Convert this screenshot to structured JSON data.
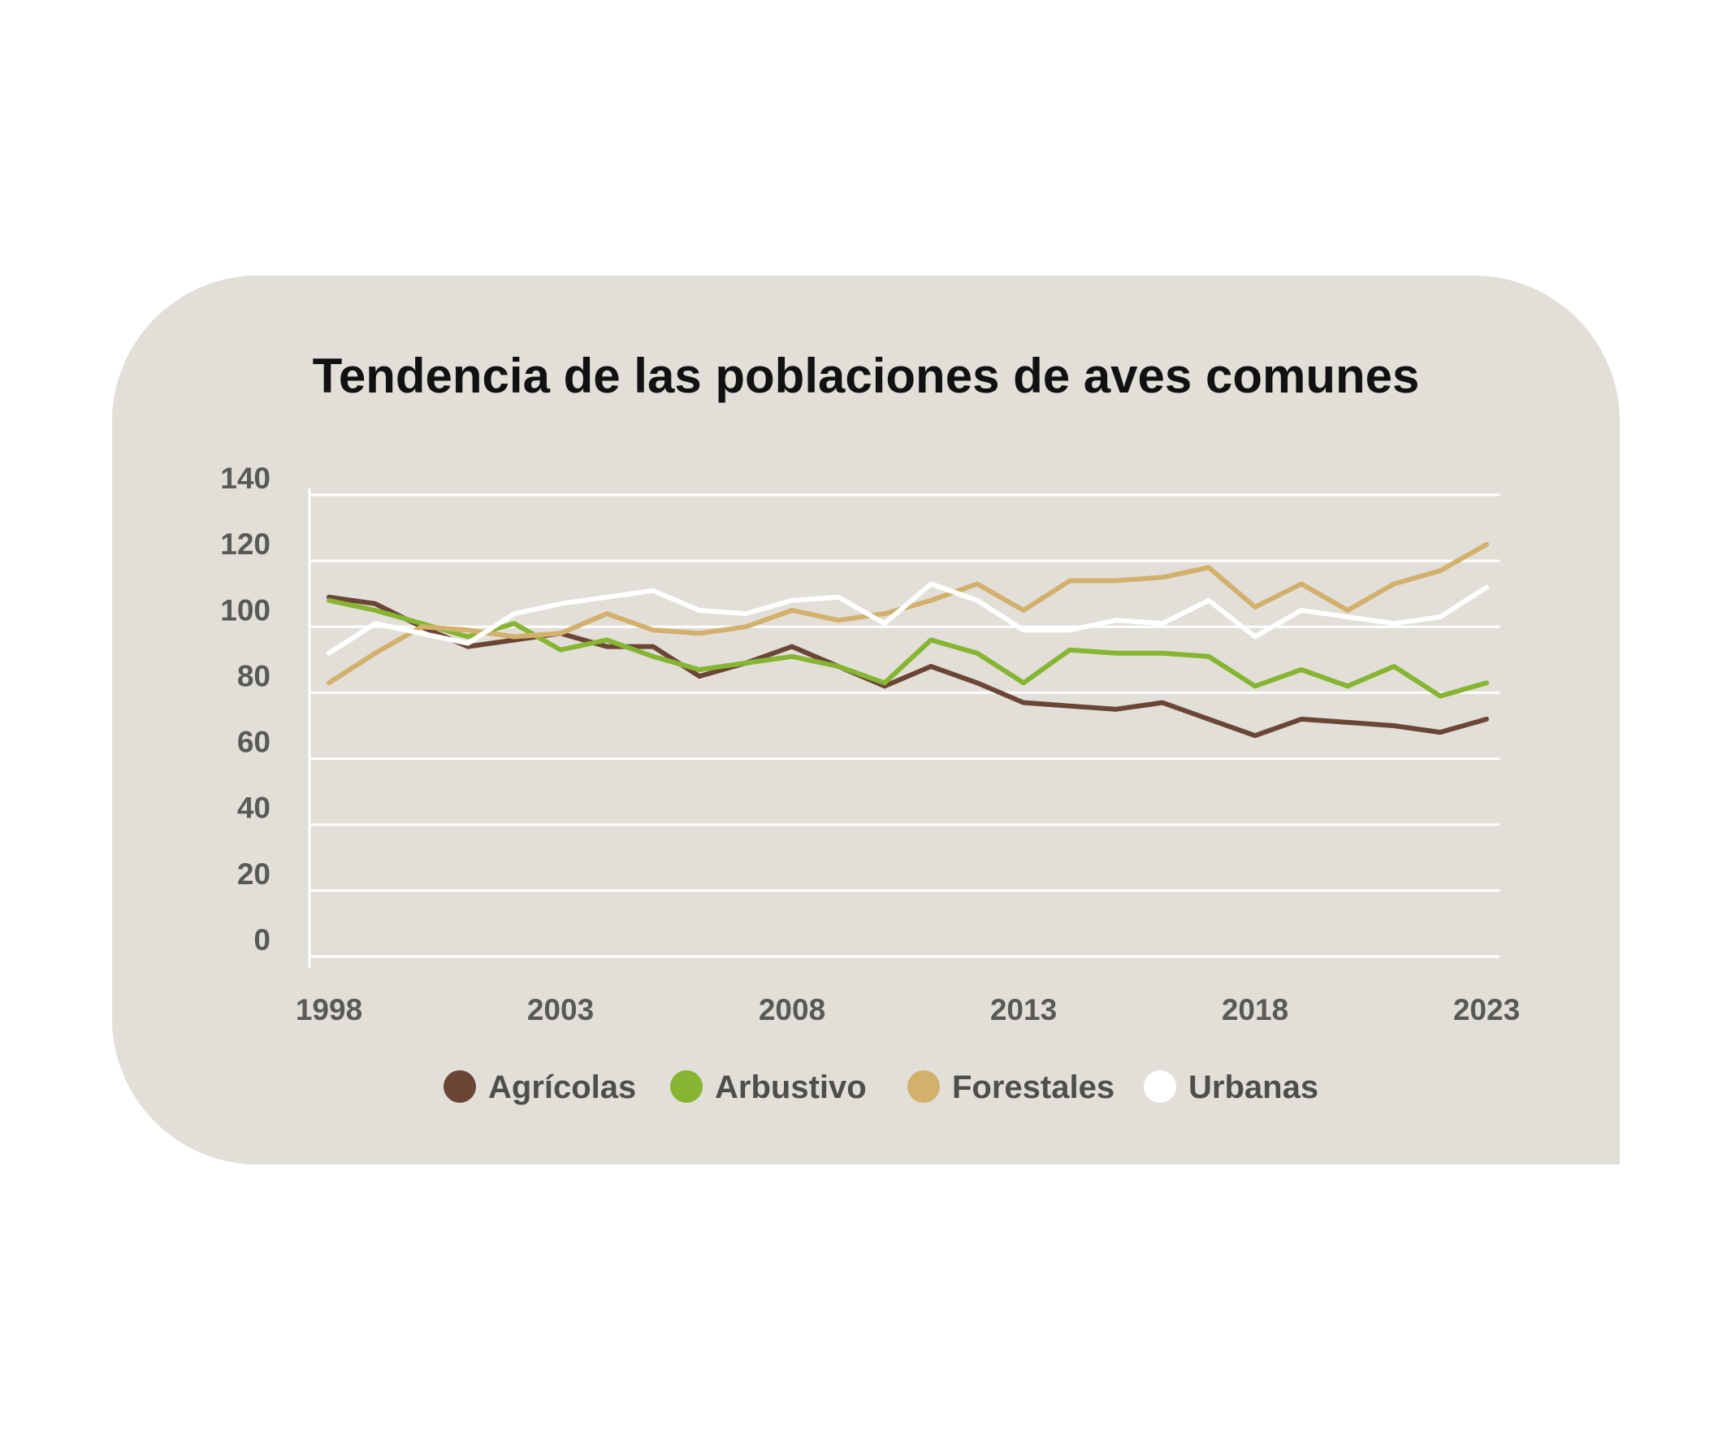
{
  "chart_data": {
    "type": "line",
    "title": "Tendencia de las poblaciones de aves comunes",
    "xlabel": "",
    "ylabel": "",
    "x": [
      1998,
      1999,
      2000,
      2001,
      2002,
      2003,
      2004,
      2005,
      2006,
      2007,
      2008,
      2009,
      2010,
      2011,
      2012,
      2013,
      2014,
      2015,
      2016,
      2017,
      2018,
      2019,
      2020,
      2021,
      2022,
      2023
    ],
    "x_ticks": [
      "1998",
      "2003",
      "2008",
      "2013",
      "2018",
      "2023"
    ],
    "y_ticks": [
      "0",
      "20",
      "40",
      "60",
      "80",
      "100",
      "120",
      "140"
    ],
    "ylim": [
      0,
      140
    ],
    "xlim": [
      1998,
      2023
    ],
    "grid": true,
    "legend_position": "bottom",
    "series": [
      {
        "name": "Agrícolas",
        "color": "#6b4535",
        "values": [
          109,
          107,
          100,
          94,
          96,
          98,
          94,
          94,
          85,
          89,
          94,
          88,
          82,
          88,
          83,
          77,
          76,
          75,
          77,
          72,
          67,
          72,
          71,
          70,
          68,
          72
        ]
      },
      {
        "name": "Arbustivo",
        "color": "#86b532",
        "values": [
          108,
          105,
          101,
          97,
          101,
          93,
          96,
          91,
          87,
          89,
          91,
          88,
          83,
          96,
          92,
          83,
          93,
          92,
          92,
          91,
          82,
          87,
          82,
          88,
          79,
          83
        ]
      },
      {
        "name": "Forestales",
        "color": "#d3b06c",
        "values": [
          83,
          92,
          100,
          99,
          97,
          98,
          104,
          99,
          98,
          100,
          105,
          102,
          104,
          108,
          113,
          105,
          114,
          114,
          115,
          118,
          106,
          113,
          105,
          113,
          117,
          125
        ]
      },
      {
        "name": "Urbanas",
        "color": "#ffffff",
        "values": [
          92,
          101,
          98,
          95,
          104,
          107,
          109,
          111,
          105,
          104,
          108,
          109,
          101,
          113,
          108,
          99,
          99,
          102,
          101,
          108,
          97,
          105,
          103,
          101,
          103,
          112
        ]
      }
    ]
  },
  "colors": {
    "card_background": "#e2dfd9",
    "grid": "#ffffff",
    "axis": "#ffffff"
  }
}
